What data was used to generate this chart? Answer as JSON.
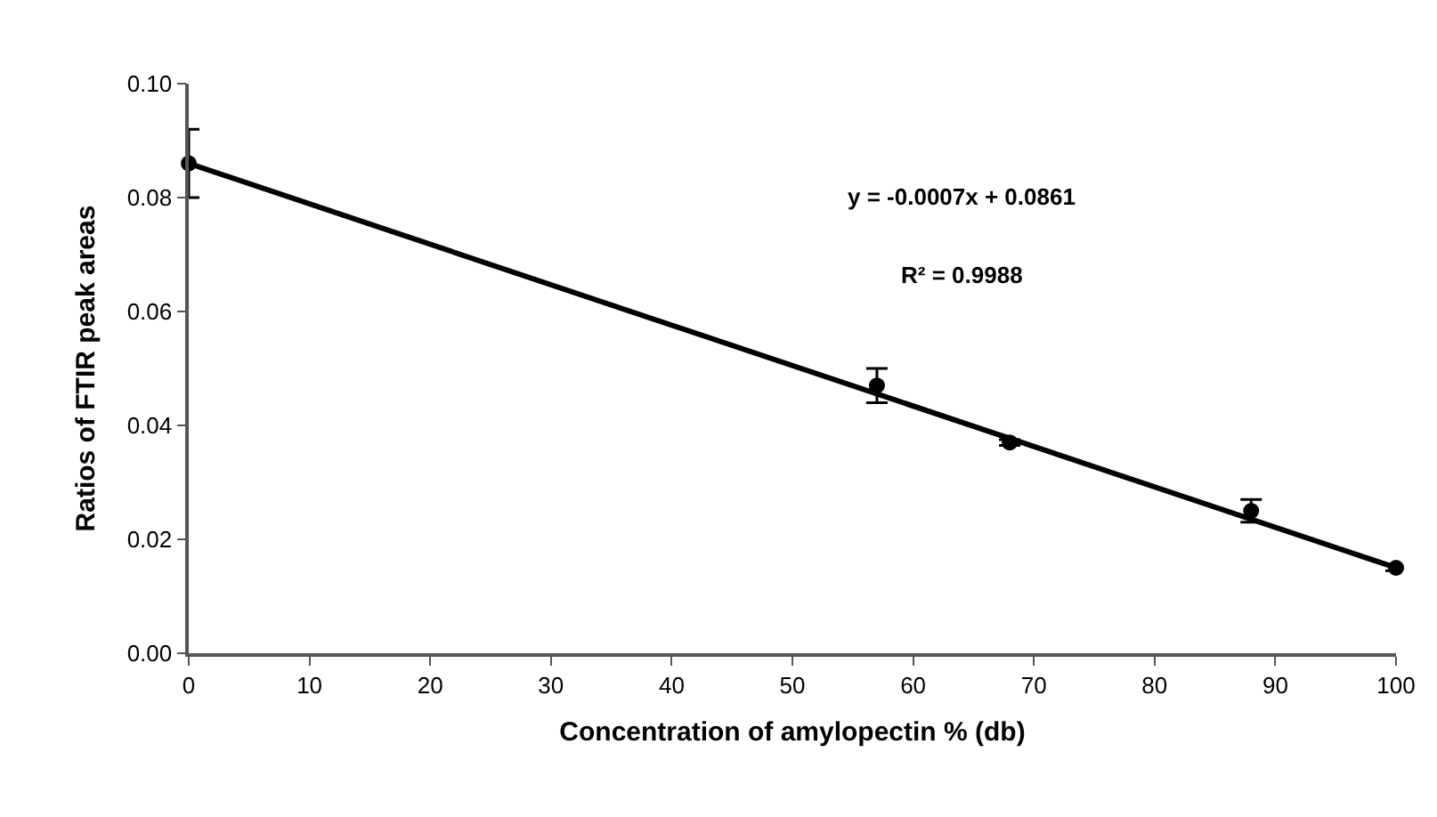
{
  "chart_data": {
    "type": "scatter",
    "xlabel": "Concentration of amylopectin % (db)",
    "ylabel": "Ratios of FTIR peak areas",
    "xlim": [
      0,
      100
    ],
    "xticks": [
      0,
      10,
      20,
      30,
      40,
      50,
      60,
      70,
      80,
      90,
      100
    ],
    "ylim": [
      0,
      0.1
    ],
    "yticks": [
      {
        "value": 0,
        "label": "0.00"
      },
      {
        "value": 0.02,
        "label": "0.02"
      },
      {
        "value": 0.04,
        "label": "0.04"
      },
      {
        "value": 0.06,
        "label": "0.06"
      },
      {
        "value": 0.08,
        "label": "0.08"
      },
      {
        "value": 0.1,
        "label": "0.10"
      }
    ],
    "grid": false,
    "marker": "circle",
    "series": [
      {
        "color": "#000000",
        "x": [
          0,
          57,
          68,
          88,
          100
        ],
        "values": [
          0.086,
          0.047,
          0.037,
          0.025,
          0.015
        ],
        "errors": [
          0.006,
          0.003,
          0.0005,
          0.002,
          0.0005
        ]
      },
      {
        "type": "line",
        "color": "#000000",
        "x": [
          0,
          100
        ],
        "values": [
          0.086,
          0.015
        ],
        "marker": "none",
        "line_style": "solid"
      }
    ],
    "annotations": [
      "y = -0.0007x + 0.0861",
      "R² = 0.9988"
    ]
  }
}
